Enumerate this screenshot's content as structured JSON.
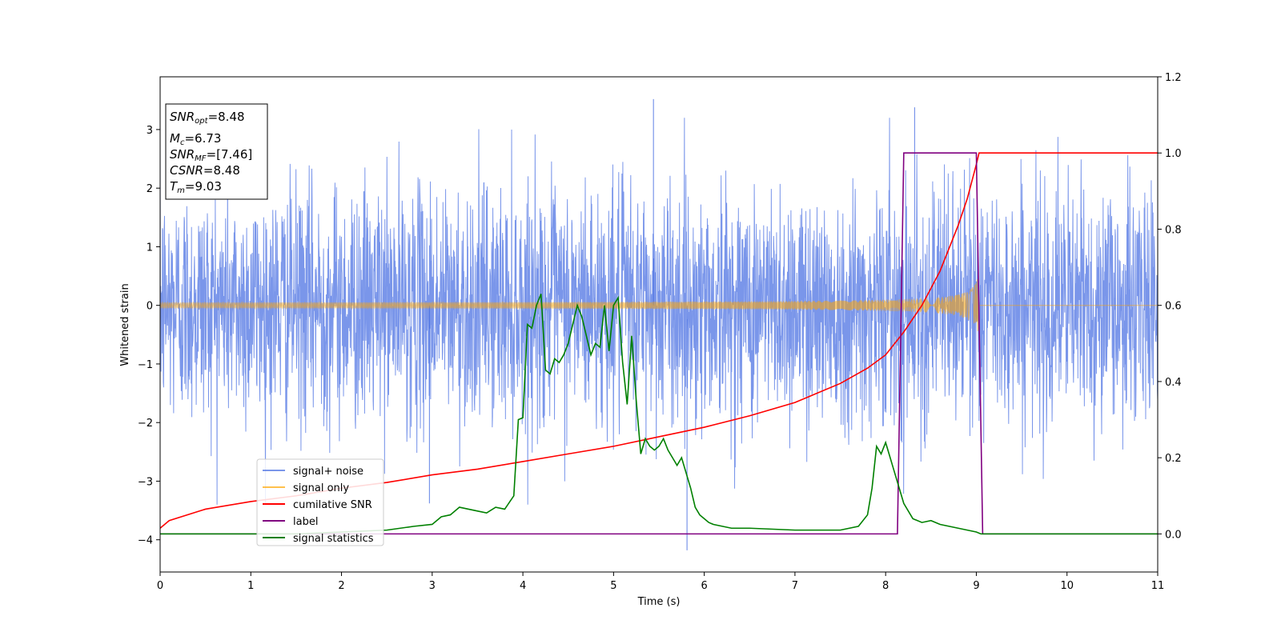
{
  "chart_data": {
    "type": "line",
    "xlabel": "Time (s)",
    "ylabel": "Whitened strain",
    "xlim": [
      0,
      11
    ],
    "ylim": [
      -4.55,
      3.9
    ],
    "y2lim": [
      -0.1,
      1.2
    ],
    "x_ticks": [
      0,
      1,
      2,
      3,
      4,
      5,
      6,
      7,
      8,
      9,
      10,
      11
    ],
    "y_ticks": [
      -4,
      -3,
      -2,
      -1,
      0,
      1,
      2,
      3
    ],
    "y2_ticks": [
      0.0,
      0.2,
      0.4,
      0.6,
      0.8,
      1.0,
      1.2
    ],
    "grid": false,
    "legend_position": "lower-left",
    "annotation_box": {
      "snr_opt": {
        "label": "SNR",
        "sub": "opt",
        "value": "=8.48"
      },
      "mc": {
        "label": "M",
        "sub": "c",
        "value": "=6.73"
      },
      "snr_mf": {
        "label": "SNR",
        "sub": "MF",
        "value": "=[7.46]"
      },
      "csnr": {
        "label": "CSNR",
        "value": "=8.48"
      },
      "tm": {
        "label": "T",
        "sub": "m",
        "value": "=9.03"
      }
    },
    "series": [
      {
        "name": "signal+ noise",
        "color": "#4169e1",
        "axis": "left",
        "description": "noise band roughly between -2 and +2 with spikes up to 3.5 and down to -4.2",
        "x_range": [
          0,
          11
        ],
        "typical_amplitude": 1.6,
        "peak_max": 3.52,
        "peak_min": -4.18
      },
      {
        "name": "signal only",
        "color": "#ffa500",
        "axis": "left",
        "description": "chirp with amplitude growing toward merger at t=9.03",
        "x_range": [
          0,
          9.03
        ],
        "amplitude_start": 0.03,
        "amplitude_end": 0.6
      },
      {
        "name": "cumilative SNR",
        "color": "#ff0000",
        "axis": "right",
        "x": [
          0,
          0.1,
          0.5,
          1,
          1.5,
          2,
          2.5,
          3,
          3.5,
          4,
          4.5,
          5,
          5.5,
          6,
          6.5,
          7,
          7.5,
          7.8,
          8.0,
          8.2,
          8.4,
          8.6,
          8.8,
          8.9,
          9.0,
          9.03,
          11
        ],
        "values": [
          0.015,
          0.035,
          0.065,
          0.085,
          0.1,
          0.12,
          0.135,
          0.155,
          0.17,
          0.19,
          0.21,
          0.23,
          0.255,
          0.28,
          0.31,
          0.345,
          0.395,
          0.435,
          0.47,
          0.53,
          0.6,
          0.69,
          0.81,
          0.88,
          0.97,
          1.0,
          1.0
        ]
      },
      {
        "name": "label",
        "color": "#800080",
        "axis": "right",
        "x": [
          0,
          8.13,
          8.2,
          9.0,
          9.07,
          11
        ],
        "values": [
          0,
          0,
          1,
          1,
          0,
          0
        ]
      },
      {
        "name": "signal statistics",
        "color": "#008000",
        "axis": "right",
        "x": [
          0,
          1.5,
          2.5,
          2.8,
          3.0,
          3.1,
          3.2,
          3.3,
          3.4,
          3.5,
          3.6,
          3.7,
          3.8,
          3.9,
          3.95,
          4.0,
          4.05,
          4.1,
          4.15,
          4.2,
          4.25,
          4.3,
          4.35,
          4.4,
          4.45,
          4.5,
          4.55,
          4.6,
          4.65,
          4.7,
          4.75,
          4.8,
          4.85,
          4.9,
          4.95,
          5.0,
          5.05,
          5.1,
          5.15,
          5.2,
          5.25,
          5.3,
          5.35,
          5.4,
          5.45,
          5.5,
          5.55,
          5.6,
          5.65,
          5.7,
          5.75,
          5.8,
          5.85,
          5.9,
          5.95,
          6.0,
          6.05,
          6.1,
          6.2,
          6.3,
          6.5,
          7.0,
          7.5,
          7.7,
          7.8,
          7.85,
          7.9,
          7.95,
          8.0,
          8.05,
          8.1,
          8.2,
          8.3,
          8.4,
          8.5,
          8.6,
          8.7,
          8.8,
          8.9,
          9.0,
          9.05,
          9.5,
          10,
          11
        ],
        "values": [
          0.0,
          0.0,
          0.01,
          0.02,
          0.025,
          0.045,
          0.05,
          0.07,
          0.065,
          0.06,
          0.055,
          0.07,
          0.065,
          0.1,
          0.3,
          0.305,
          0.55,
          0.54,
          0.6,
          0.63,
          0.43,
          0.42,
          0.46,
          0.45,
          0.47,
          0.5,
          0.55,
          0.6,
          0.57,
          0.52,
          0.47,
          0.5,
          0.49,
          0.6,
          0.48,
          0.6,
          0.62,
          0.45,
          0.34,
          0.52,
          0.35,
          0.21,
          0.25,
          0.23,
          0.22,
          0.23,
          0.25,
          0.22,
          0.2,
          0.18,
          0.2,
          0.16,
          0.12,
          0.07,
          0.05,
          0.04,
          0.03,
          0.025,
          0.02,
          0.015,
          0.015,
          0.01,
          0.01,
          0.02,
          0.05,
          0.12,
          0.23,
          0.21,
          0.24,
          0.2,
          0.16,
          0.08,
          0.04,
          0.03,
          0.035,
          0.025,
          0.02,
          0.015,
          0.01,
          0.005,
          0.0,
          0.0,
          0.0,
          0.0
        ]
      }
    ]
  }
}
